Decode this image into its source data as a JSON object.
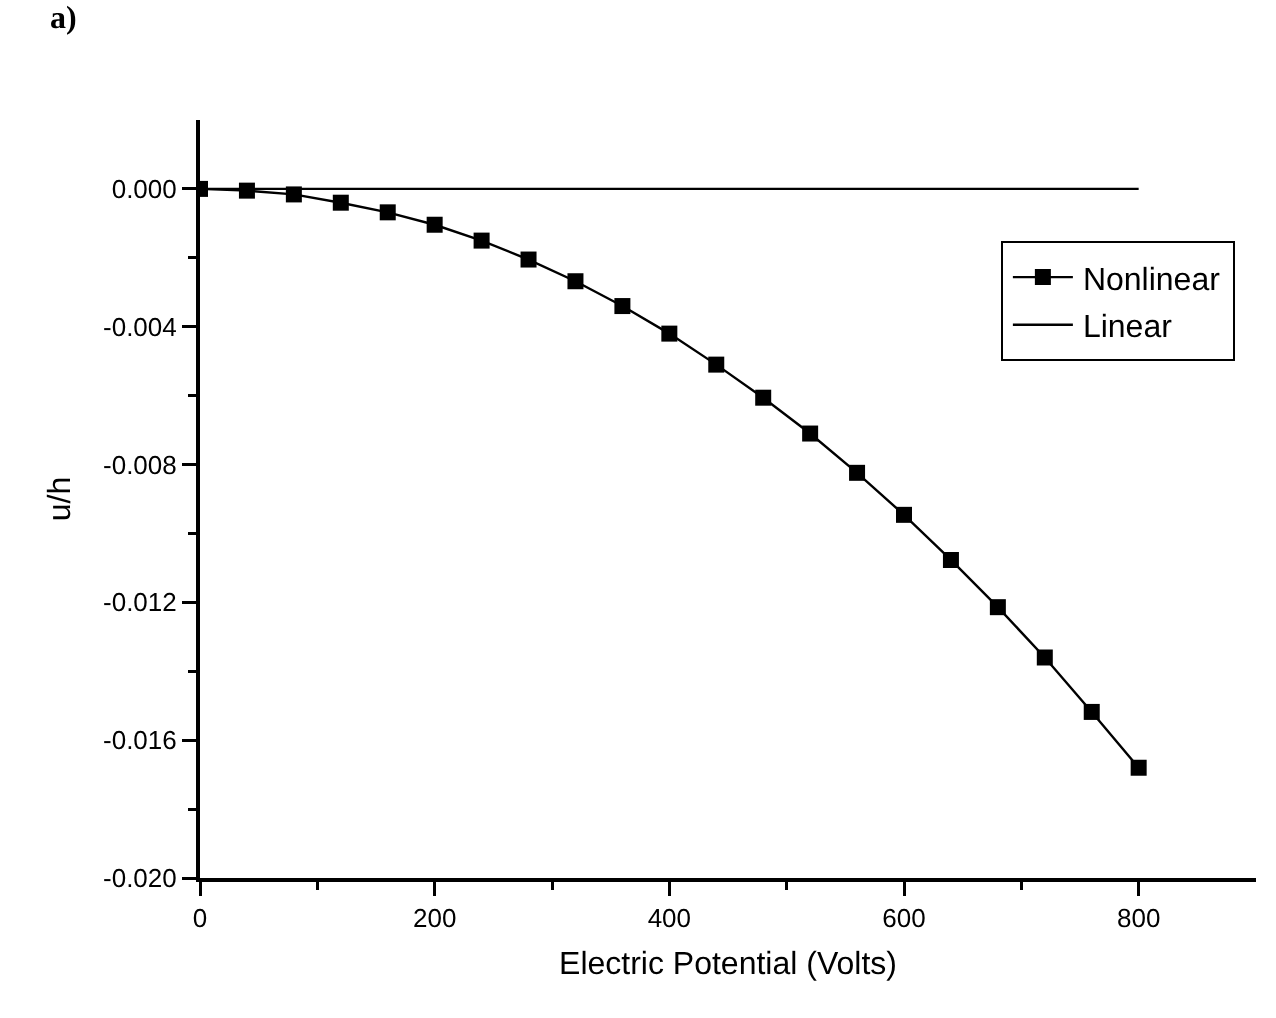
{
  "chart_data": {
    "type": "line",
    "annotations": [
      "a)"
    ],
    "xlabel": "Electric Potential (Volts)",
    "ylabel": "u/h",
    "x": [
      0,
      40,
      80,
      120,
      160,
      200,
      240,
      280,
      320,
      360,
      400,
      440,
      480,
      520,
      560,
      600,
      640,
      680,
      720,
      760,
      800
    ],
    "series": [
      {
        "name": "Nonlinear",
        "color": "#000000",
        "marker": "square",
        "values": [
          0,
          -5e-05,
          -0.00016,
          -0.0004,
          -0.00068,
          -0.00104,
          -0.0015,
          -0.00205,
          -0.00268,
          -0.0034,
          -0.0042,
          -0.0051,
          -0.00606,
          -0.0071,
          -0.00824,
          -0.00946,
          -0.01077,
          -0.01214,
          -0.0136,
          -0.01518,
          -0.0168
        ]
      },
      {
        "name": "Linear",
        "color": "#000000",
        "marker": "none",
        "x": [
          0,
          800
        ],
        "values": [
          0,
          0
        ]
      }
    ],
    "xlim": [
      0,
      900
    ],
    "xticks": [
      0,
      {
        "value": 100,
        "label": null
      },
      200,
      {
        "value": 300,
        "label": null
      },
      400,
      {
        "value": 500,
        "label": null
      },
      600,
      {
        "value": 700,
        "label": null
      },
      800
    ],
    "ylim": [
      -0.02,
      0.002
    ],
    "yticks": [
      {
        "value": -0.02,
        "label": "-0.020"
      },
      {
        "value": -0.018,
        "label": null
      },
      {
        "value": -0.016,
        "label": "-0.016"
      },
      {
        "value": -0.014,
        "label": null
      },
      {
        "value": -0.012,
        "label": "-0.012"
      },
      {
        "value": -0.01,
        "label": null
      },
      {
        "value": -0.008,
        "label": "-0.008"
      },
      {
        "value": -0.006,
        "label": null
      },
      {
        "value": -0.004,
        "label": "-0.004"
      },
      {
        "value": -0.002,
        "label": null
      },
      {
        "value": 0,
        "label": "0.000"
      }
    ],
    "grid": false,
    "legend": "top right",
    "line_style": "solid"
  }
}
